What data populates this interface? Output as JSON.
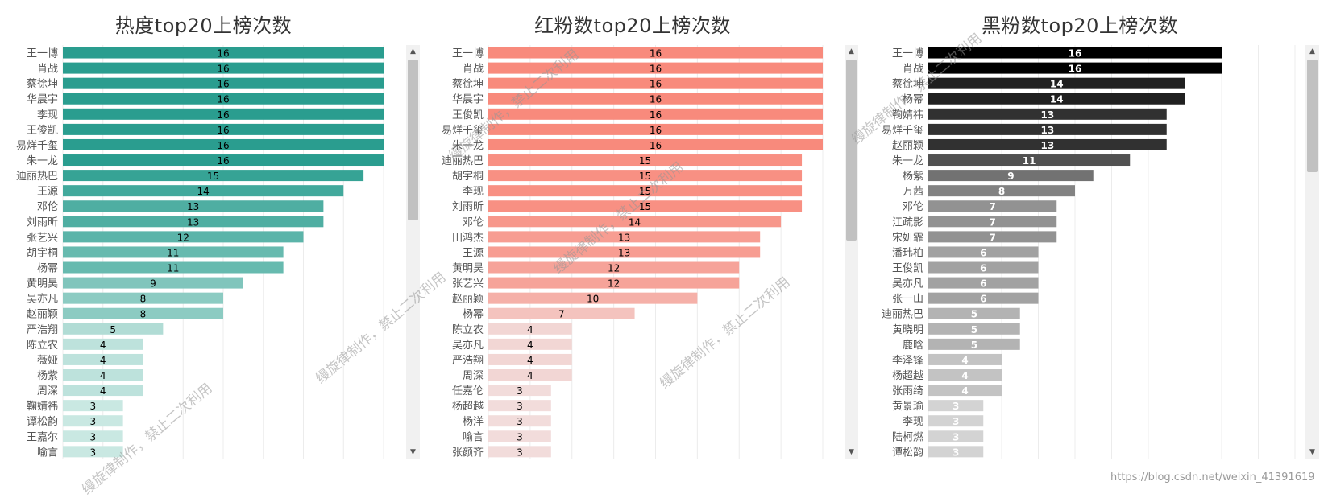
{
  "chart_data": [
    {
      "type": "bar",
      "orientation": "horizontal",
      "title": "热度top20上榜次数",
      "categories": [
        "王一博",
        "肖战",
        "蔡徐坤",
        "华晨宇",
        "李现",
        "王俊凯",
        "易烊千玺",
        "朱一龙",
        "迪丽热巴",
        "王源",
        "邓伦",
        "刘雨昕",
        "张艺兴",
        "胡宇桐",
        "杨幂",
        "黄明昊",
        "吴亦凡",
        "赵丽颖",
        "严浩翔",
        "陈立农",
        "薇娅",
        "杨紫",
        "周深",
        "鞠婧祎",
        "谭松韵",
        "王嘉尔",
        "喻言"
      ],
      "values": [
        16,
        16,
        16,
        16,
        16,
        16,
        16,
        16,
        15,
        14,
        13,
        13,
        12,
        11,
        11,
        9,
        8,
        8,
        5,
        4,
        4,
        4,
        4,
        3,
        3,
        3,
        3
      ],
      "xlim": [
        0,
        17
      ],
      "grid": true,
      "color_range": [
        "#c9e8e2",
        "#2a9d8f"
      ],
      "label_color": "#000000"
    },
    {
      "type": "bar",
      "orientation": "horizontal",
      "title": "红粉数top20上榜次数",
      "categories": [
        "王一博",
        "肖战",
        "蔡徐坤",
        "华晨宇",
        "王俊凯",
        "易烊千玺",
        "朱一龙",
        "迪丽热巴",
        "胡宇桐",
        "李现",
        "刘雨昕",
        "邓伦",
        "田鸿杰",
        "王源",
        "黄明昊",
        "张艺兴",
        "赵丽颖",
        "杨幂",
        "陈立农",
        "吴亦凡",
        "严浩翔",
        "周深",
        "任嘉伦",
        "杨超越",
        "杨洋",
        "喻言",
        "张颜齐"
      ],
      "values": [
        16,
        16,
        16,
        16,
        16,
        16,
        16,
        15,
        15,
        15,
        15,
        14,
        13,
        13,
        12,
        12,
        10,
        7,
        4,
        4,
        4,
        4,
        3,
        3,
        3,
        3,
        3
      ],
      "xlim": [
        0,
        17
      ],
      "grid": true,
      "color_range": [
        "#f2dcdb",
        "#f88a7c"
      ],
      "label_color": "#000000"
    },
    {
      "type": "bar",
      "orientation": "horizontal",
      "title": "黑粉数top20上榜次数",
      "categories": [
        "王一博",
        "肖战",
        "蔡徐坤",
        "杨幂",
        "鞠婧祎",
        "易烊千玺",
        "赵丽颖",
        "朱一龙",
        "杨紫",
        "万茜",
        "邓伦",
        "江疏影",
        "宋妍霏",
        "潘玮柏",
        "王俊凯",
        "吴亦凡",
        "张一山",
        "迪丽热巴",
        "黄晓明",
        "鹿晗",
        "李泽锋",
        "杨超越",
        "张雨绮",
        "黄景瑜",
        "李现",
        "陆柯燃",
        "谭松韵"
      ],
      "values": [
        16,
        16,
        14,
        14,
        13,
        13,
        13,
        11,
        9,
        8,
        7,
        7,
        7,
        6,
        6,
        6,
        6,
        5,
        5,
        5,
        4,
        4,
        4,
        3,
        3,
        3,
        3
      ],
      "xlim": [
        0,
        17
      ],
      "grid": true,
      "color_range": [
        "#d3d3d3",
        "#000000"
      ],
      "label_color": "#ffffff"
    }
  ],
  "watermark_text": "缦旋律制作，禁止二次利用",
  "url_text": "https://blog.csdn.net/weixin_41391619"
}
